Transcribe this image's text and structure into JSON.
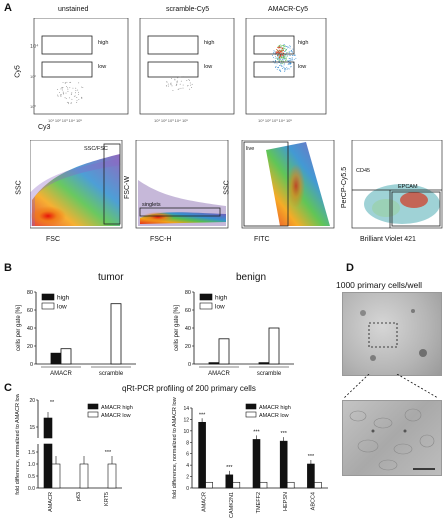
{
  "panels": {
    "A": "A",
    "B": "B",
    "C": "C",
    "D": "D"
  },
  "panelA": {
    "top_titles": [
      "unstained",
      "scramble-Cy5",
      "AMACR-Cy5"
    ],
    "top_ylabel": "Cy5",
    "top_xlabel": "Cy3",
    "gate_high": "high",
    "gate_low": "low",
    "bottom_xlabels": [
      "FSC",
      "FSC-H",
      "FITC",
      "Brilliant Violet 421"
    ],
    "bottom_ylabels": [
      "SSC",
      "FSC-W",
      "SSC",
      "PerCP-Cy5.5"
    ],
    "gate_sscfsc": "SSC/FSC",
    "gate_singlets": "singlets",
    "gate_live": "live",
    "gate_cd45": "CD45",
    "gate_epcam": "EPCAM"
  },
  "panelB": {
    "title_tumor": "tumor",
    "title_benign": "benign",
    "ylabel": "cells per gate [%]",
    "legend_high": "high",
    "legend_low": "low",
    "groups": [
      "AMACR",
      "scramble"
    ]
  },
  "panelC": {
    "title": "qRt-PCR profiling of 200 primary cells",
    "ylabel": "fold difference, normalized to AMACR low",
    "legend_high": "AMACR high",
    "legend_low": "AMACR low"
  },
  "panelD": {
    "title": "1000 primary cells/well"
  },
  "chart_data": [
    {
      "type": "bar",
      "title": "tumor",
      "ylabel": "cells per gate [%]",
      "ylim": [
        0,
        80
      ],
      "categories": [
        "AMACR",
        "scramble"
      ],
      "series": [
        {
          "name": "high",
          "values": [
            12,
            0
          ]
        },
        {
          "name": "low",
          "values": [
            17,
            67
          ]
        }
      ]
    },
    {
      "type": "bar",
      "title": "benign",
      "ylabel": "cells per gate [%]",
      "ylim": [
        0,
        80
      ],
      "categories": [
        "AMACR",
        "scramble"
      ],
      "series": [
        {
          "name": "high",
          "values": [
            1.5,
            1.5
          ]
        },
        {
          "name": "low",
          "values": [
            28,
            40
          ]
        }
      ]
    },
    {
      "type": "bar",
      "ylabel": "fold difference, normalized to AMACR low",
      "categories": [
        "AMACR",
        "p63",
        "KRT5"
      ],
      "series": [
        {
          "name": "AMACR high",
          "values": [
            16,
            0,
            0
          ]
        },
        {
          "name": "AMACR low",
          "values": [
            1,
            1,
            1
          ]
        }
      ],
      "significance": [
        "**",
        "",
        "***"
      ]
    },
    {
      "type": "bar",
      "ylabel": "fold difference, normalized to AMACR low",
      "categories": [
        "AMACR",
        "CAMK2N1",
        "TMEFF2",
        "HEPSN",
        "ABCC4"
      ],
      "ylim": [
        0,
        14
      ],
      "series": [
        {
          "name": "AMACR high",
          "values": [
            11.5,
            2.3,
            8.5,
            8.2,
            4.2
          ]
        },
        {
          "name": "AMACR low",
          "values": [
            1,
            1,
            1,
            1,
            1
          ]
        }
      ],
      "significance": [
        "***",
        "***",
        "***",
        "***",
        "***"
      ]
    }
  ]
}
